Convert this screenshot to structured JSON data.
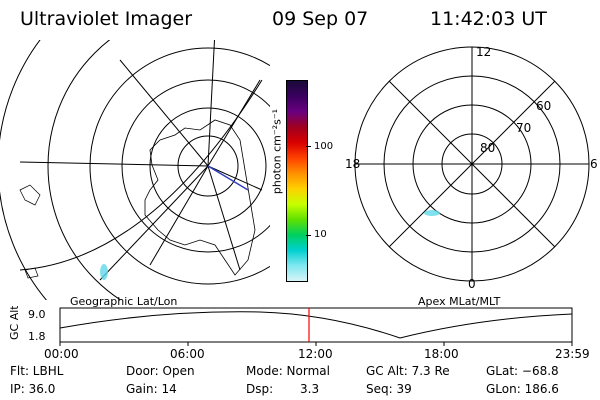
{
  "header": {
    "title": "Ultraviolet Imager",
    "date": "09 Sep 07",
    "time": "11:42:03 UT"
  },
  "colorbar": {
    "label": "photon cm⁻²s⁻¹",
    "ticks": [
      "100",
      "10"
    ],
    "colors": [
      "#1a0a3a",
      "#3a0060",
      "#6a0080",
      "#a00020",
      "#d80000",
      "#ff4000",
      "#ff9000",
      "#ffd000",
      "#c8ff00",
      "#60e000",
      "#00d060",
      "#00d0d0",
      "#80e8f0",
      "#d8f4f8"
    ]
  },
  "geo_panel": {
    "caption": "Geographic Lat/Lon"
  },
  "polar_panel": {
    "caption": "Apex MLat/MLT",
    "mlt_labels": {
      "top": "12",
      "left": "18",
      "right": "6",
      "bottom": "0"
    },
    "lat_labels": [
      "60",
      "70",
      "80"
    ]
  },
  "alt_plot": {
    "ylabel": "GC Alt",
    "yticks": [
      "9.0",
      "1.8"
    ],
    "xticks": [
      "00:00",
      "06:00",
      "12:00",
      "18:00",
      "23:59"
    ],
    "marker_color": "#ff0000"
  },
  "info": {
    "flt": "Flt: LBHL",
    "door": "Door: Open",
    "mode": "Mode: Normal",
    "gcalt": "GC Alt: 7.3 Re",
    "glat": "GLat: −68.8",
    "ip": "IP: 36.0",
    "gain": "Gain: 14",
    "dsp_label": "Dsp:",
    "dsp_value": "3.3",
    "seq": "Seq: 39",
    "glon": "GLon: 186.6"
  }
}
